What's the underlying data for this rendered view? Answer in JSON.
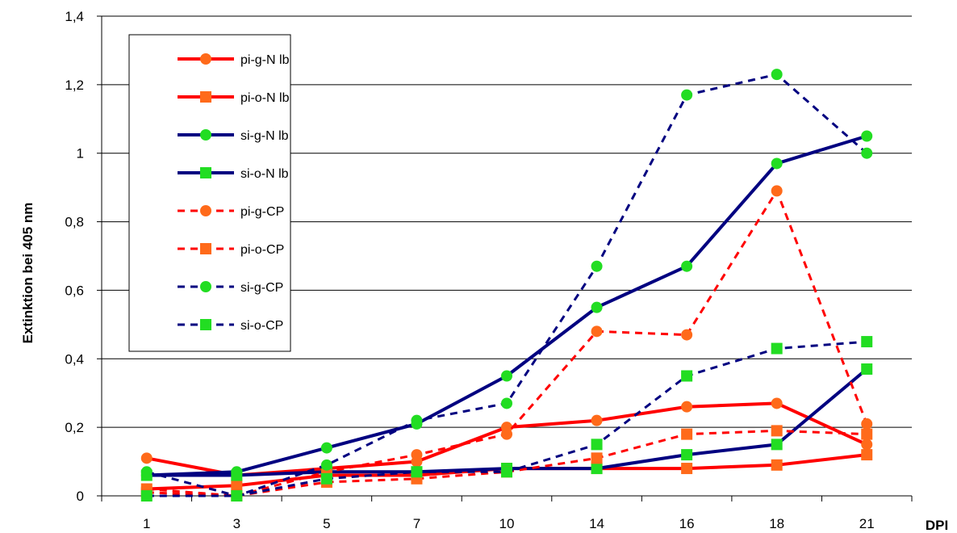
{
  "chart_data": {
    "type": "line",
    "title": "",
    "xlabel": "DPI",
    "ylabel": "Extinktion bei 405 nm",
    "categories": [
      "1",
      "3",
      "5",
      "7",
      "10",
      "14",
      "16",
      "18",
      "21"
    ],
    "ylim": [
      0,
      1.4
    ],
    "yticks": [
      0,
      0.2,
      0.4,
      0.6,
      0.8,
      1,
      1.2,
      1.4
    ],
    "ytick_labels": [
      "0",
      "0,2",
      "0,4",
      "0,6",
      "0,8",
      "1",
      "1,2",
      "1,4"
    ],
    "grid": true,
    "legend_position": "top-left",
    "series": [
      {
        "name": "pi-g-N lb",
        "line_color": "#ff0000",
        "marker_color": "#ff6a1a",
        "marker": "circle",
        "dashed": false,
        "values": [
          0.11,
          0.06,
          0.08,
          0.1,
          0.2,
          0.22,
          0.26,
          0.27,
          0.15
        ]
      },
      {
        "name": "pi-o-N lb",
        "line_color": "#ff0000",
        "marker_color": "#ff6a1a",
        "marker": "square",
        "dashed": false,
        "values": [
          0.02,
          0.03,
          0.06,
          0.06,
          0.08,
          0.08,
          0.08,
          0.09,
          0.12
        ]
      },
      {
        "name": "si-g-N lb",
        "line_color": "#000080",
        "marker_color": "#22dd22",
        "marker": "circle",
        "dashed": false,
        "values": [
          0.06,
          0.07,
          0.14,
          0.21,
          0.35,
          0.55,
          0.67,
          0.97,
          1.05
        ]
      },
      {
        "name": "si-o-N lb",
        "line_color": "#000080",
        "marker_color": "#22dd22",
        "marker": "square",
        "dashed": false,
        "values": [
          0.06,
          0.06,
          0.07,
          0.07,
          0.08,
          0.08,
          0.12,
          0.15,
          0.37
        ]
      },
      {
        "name": "pi-g-CP",
        "line_color": "#ff0000",
        "marker_color": "#ff6a1a",
        "marker": "circle",
        "dashed": true,
        "values": [
          0.02,
          0.0,
          0.07,
          0.12,
          0.18,
          0.48,
          0.47,
          0.89,
          0.21
        ]
      },
      {
        "name": "pi-o-CP",
        "line_color": "#ff0000",
        "marker_color": "#ff6a1a",
        "marker": "square",
        "dashed": true,
        "values": [
          0.01,
          0.0,
          0.04,
          0.05,
          0.07,
          0.11,
          0.18,
          0.19,
          0.18
        ]
      },
      {
        "name": "si-g-CP",
        "line_color": "#000080",
        "marker_color": "#22dd22",
        "marker": "circle",
        "dashed": true,
        "values": [
          0.07,
          0.0,
          0.09,
          0.22,
          0.27,
          0.67,
          1.17,
          1.23,
          1.0
        ]
      },
      {
        "name": "si-o-CP",
        "line_color": "#000080",
        "marker_color": "#22dd22",
        "marker": "square",
        "dashed": true,
        "values": [
          0.0,
          0.0,
          0.05,
          0.07,
          0.07,
          0.15,
          0.35,
          0.43,
          0.45
        ]
      }
    ]
  }
}
